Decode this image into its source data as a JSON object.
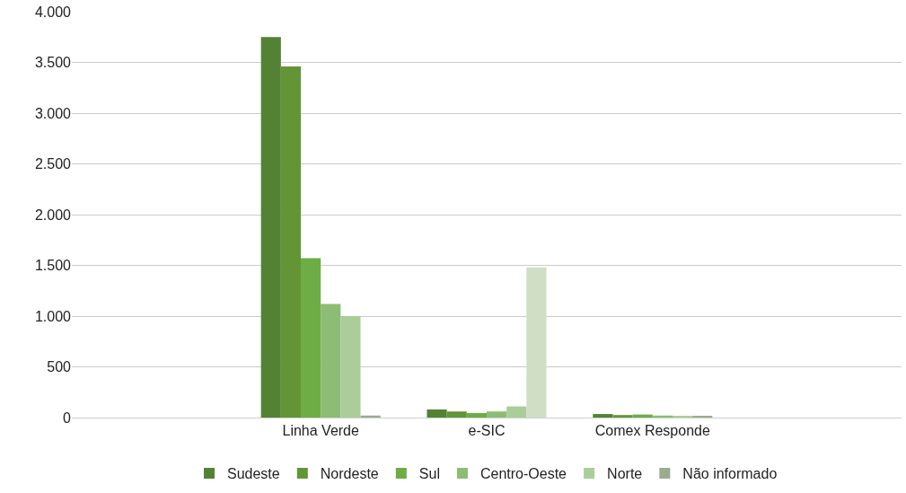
{
  "chart_data": {
    "type": "bar",
    "categories": [
      null,
      "Linha Verde",
      "e-SIC",
      "Comex Responde",
      null
    ],
    "series": [
      {
        "name": "Sudeste",
        "color": "#548235",
        "values": [
          null,
          3750,
          80,
          35,
          null
        ]
      },
      {
        "name": "Nordeste",
        "color": "#639537",
        "values": [
          null,
          3460,
          60,
          25,
          null
        ]
      },
      {
        "name": "Sul",
        "color": "#6ead45",
        "values": [
          null,
          1570,
          45,
          30,
          null
        ]
      },
      {
        "name": "Centro-Oeste",
        "color": "#8dbd74",
        "values": [
          null,
          1120,
          60,
          20,
          null
        ]
      },
      {
        "name": "Norte",
        "color": "#aacd99",
        "values": [
          null,
          1000,
          110,
          15,
          null
        ]
      },
      {
        "name": "Não informado",
        "color": "#9aab8f",
        "colors": [
          "#9aab8f",
          "#9aab8f",
          "#cfdec5",
          "#9aab8f",
          "#9aab8f"
        ],
        "values": [
          null,
          20,
          1480,
          15,
          null
        ]
      }
    ],
    "ylim": [
      0,
      4000
    ],
    "yticks": [
      {
        "value": 0,
        "label": "0"
      },
      {
        "value": 500,
        "label": "500"
      },
      {
        "value": 1000,
        "label": "1.000"
      },
      {
        "value": 1500,
        "label": "1.500"
      },
      {
        "value": 2000,
        "label": "2.000"
      },
      {
        "value": 2500,
        "label": "2.500"
      },
      {
        "value": 3000,
        "label": "3.000"
      },
      {
        "value": 3500,
        "label": "3.500"
      },
      {
        "value": 4000,
        "label": "4.000"
      }
    ],
    "grid": "y",
    "legend": "bottom"
  }
}
